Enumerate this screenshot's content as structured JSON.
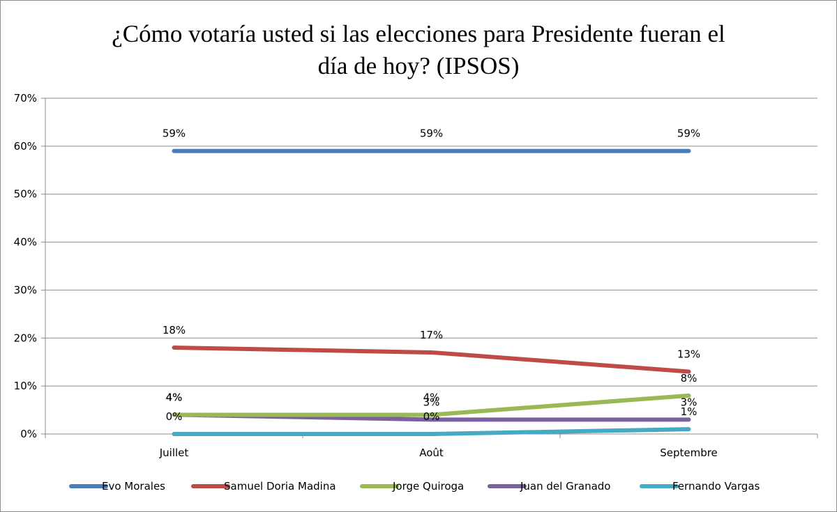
{
  "chart_data": {
    "type": "line",
    "title_lines": [
      "¿Cómo votaría usted si las elecciones para Presidente fueran el",
      "día de hoy? (IPSOS)"
    ],
    "categories": [
      "Juillet",
      "Août",
      "Septembre"
    ],
    "y_ticks": [
      "0%",
      "10%",
      "20%",
      "30%",
      "40%",
      "50%",
      "60%",
      "70%"
    ],
    "ylim": [
      0,
      70
    ],
    "grid": true,
    "legend_position": "bottom",
    "series": [
      {
        "name": "Evo Morales",
        "color": "#4a7ebb",
        "values": [
          59,
          59,
          59
        ],
        "labels": [
          "59%",
          "59%",
          "59%"
        ]
      },
      {
        "name": "Samuel Doria Madina",
        "color": "#be4b48",
        "values": [
          18,
          17,
          13
        ],
        "labels": [
          "18%",
          "17%",
          "13%"
        ]
      },
      {
        "name": "Jorge Quiroga",
        "color": "#98b954",
        "values": [
          4,
          4,
          8
        ],
        "labels": [
          "4%",
          "4%",
          "8%"
        ]
      },
      {
        "name": "Juan del Granado",
        "color": "#7d60a0",
        "values": [
          4,
          3,
          3
        ],
        "labels": [
          "4%",
          "3%",
          "3%"
        ]
      },
      {
        "name": "Fernando Vargas",
        "color": "#46aac5",
        "values": [
          0,
          0,
          1
        ],
        "labels": [
          "0%",
          "0%",
          "1%"
        ]
      }
    ]
  }
}
